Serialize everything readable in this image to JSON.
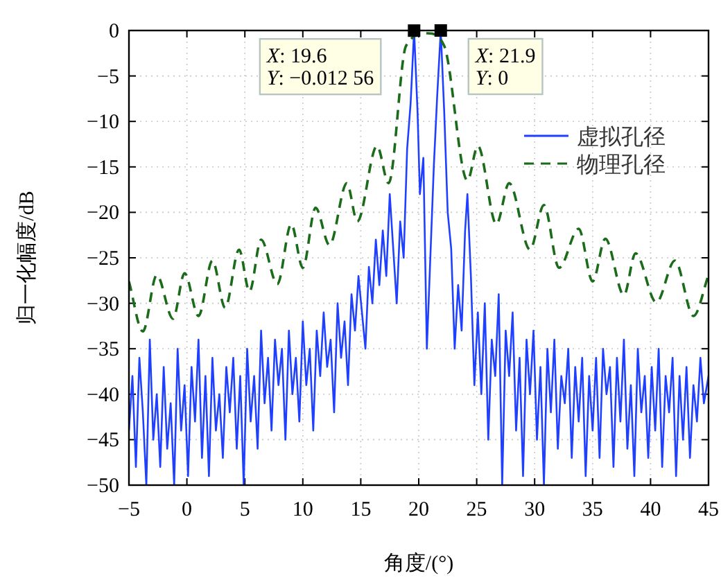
{
  "chart_data": {
    "type": "line",
    "xlabel": "角度/(°)",
    "ylabel": "归一化幅度/dB",
    "xlim": [
      -5,
      45
    ],
    "xticks": [
      -5,
      0,
      5,
      10,
      15,
      20,
      25,
      30,
      35,
      40,
      45
    ],
    "ylim": [
      -50,
      0
    ],
    "yticks": [
      -50,
      -45,
      -40,
      -35,
      -30,
      -25,
      -20,
      -15,
      -10,
      -5,
      0
    ],
    "grid": true,
    "legend": "top right",
    "series": [
      {
        "name": "虚拟孔径",
        "color": "#2040ff",
        "line_style": "solid",
        "x": [
          -5,
          -4.7,
          -4.4,
          -4.1,
          -3.8,
          -3.5,
          -3.2,
          -2.9,
          -2.6,
          -2.3,
          -2.0,
          -1.7,
          -1.4,
          -1.1,
          -0.8,
          -0.5,
          -0.2,
          0.1,
          0.4,
          0.7,
          1.0,
          1.3,
          1.6,
          1.9,
          2.2,
          2.5,
          2.8,
          3.1,
          3.4,
          3.7,
          4.0,
          4.3,
          4.6,
          4.9,
          5.2,
          5.5,
          5.8,
          6.1,
          6.4,
          6.7,
          7.0,
          7.3,
          7.6,
          7.9,
          8.2,
          8.5,
          8.8,
          9.1,
          9.4,
          9.7,
          10.0,
          10.3,
          10.6,
          10.9,
          11.2,
          11.5,
          11.8,
          12.1,
          12.4,
          12.7,
          13.0,
          13.3,
          13.6,
          13.9,
          14.2,
          14.5,
          14.8,
          15.1,
          15.4,
          15.7,
          16.0,
          16.3,
          16.6,
          16.9,
          17.2,
          17.5,
          17.8,
          18.1,
          18.4,
          18.7,
          19.0,
          19.3,
          19.6,
          19.9,
          20.1,
          20.4,
          20.7,
          21.0,
          21.3,
          21.6,
          21.9,
          22.2,
          22.5,
          22.8,
          23.1,
          23.4,
          23.7,
          24.0,
          24.2,
          24.5,
          24.8,
          25.1,
          25.4,
          25.7,
          26.0,
          26.3,
          26.6,
          26.9,
          27.2,
          27.5,
          27.8,
          28.1,
          28.4,
          28.7,
          29.0,
          29.3,
          29.6,
          29.9,
          30.2,
          30.5,
          30.8,
          31.1,
          31.4,
          31.7,
          32.0,
          32.3,
          32.6,
          32.9,
          33.2,
          33.5,
          33.8,
          34.1,
          34.4,
          34.7,
          35.0,
          35.3,
          35.6,
          35.9,
          36.2,
          36.5,
          36.8,
          37.1,
          37.4,
          37.7,
          38.0,
          38.3,
          38.6,
          38.9,
          39.2,
          39.5,
          39.8,
          40.1,
          40.4,
          40.7,
          41.0,
          41.3,
          41.6,
          41.9,
          42.2,
          42.5,
          42.8,
          43.1,
          43.4,
          43.7,
          44.0,
          44.3,
          44.6,
          45.0
        ],
        "values": [
          -44,
          -38,
          -48,
          -36,
          -42,
          -50,
          -34,
          -45,
          -40,
          -48,
          -37,
          -46,
          -41,
          -50,
          -35,
          -44,
          -39,
          -49,
          -37,
          -43,
          -34,
          -47,
          -38,
          -49,
          -36,
          -44,
          -40,
          -47,
          -37,
          -42,
          -36,
          -46,
          -38,
          -50,
          -35,
          -43,
          -38,
          -46,
          -33,
          -41,
          -36,
          -44,
          -34,
          -39,
          -35,
          -45,
          -33,
          -40,
          -36,
          -43,
          -32,
          -39,
          -35,
          -44,
          -33,
          -38,
          -31,
          -37,
          -34,
          -42,
          -30,
          -36,
          -32,
          -39,
          -29,
          -33,
          -27,
          -31,
          -35,
          -26,
          -30,
          -23,
          -28,
          -22,
          -27,
          -18,
          -24,
          -30,
          -21,
          -25,
          -13,
          -8,
          -0.01256,
          -9,
          -18,
          -14,
          -35,
          -25,
          -15,
          -7,
          0,
          -9,
          -20,
          -24,
          -35,
          -28,
          -33,
          -22,
          -18,
          -27,
          -39,
          -31,
          -40,
          -30,
          -45,
          -34,
          -38,
          -29,
          -50,
          -33,
          -38,
          -31,
          -44,
          -36,
          -49,
          -34,
          -40,
          -33,
          -45,
          -37,
          -50,
          -35,
          -42,
          -34,
          -46,
          -38,
          -41,
          -35,
          -47,
          -37,
          -43,
          -36,
          -49,
          -38,
          -44,
          -36,
          -47,
          -35,
          -40,
          -37,
          -48,
          -36,
          -43,
          -34,
          -46,
          -39,
          -49,
          -35,
          -42,
          -38,
          -47,
          -37,
          -44,
          -35,
          -48,
          -38,
          -42,
          -36,
          -49,
          -38,
          -45,
          -37,
          -47,
          -39,
          -43,
          -36,
          -41,
          -38
        ]
      },
      {
        "name": "物理孔径",
        "color": "#1a6b1a",
        "line_style": "dashed",
        "x": [
          -5,
          -3.8,
          -2.6,
          -1.2,
          -0.2,
          1.0,
          2.2,
          3.3,
          4.5,
          5.4,
          6.4,
          7.8,
          9.0,
          10.0,
          11.1,
          12.3,
          13.8,
          14.7,
          16.4,
          17.4,
          18.9,
          20.75,
          22.2,
          24.2,
          25.1,
          26.7,
          27.8,
          29.6,
          30.8,
          32.1,
          33.8,
          35.0,
          36.1,
          37.7,
          38.7,
          40.5,
          42.1,
          43.7,
          45
        ],
        "values": [
          -27.6,
          -33.1,
          -26.9,
          -31.7,
          -26.7,
          -31.4,
          -25.3,
          -30.5,
          -24.1,
          -28.7,
          -23.0,
          -27.9,
          -21.3,
          -26.1,
          -19.5,
          -23.6,
          -16.8,
          -21.0,
          -12.7,
          -16.8,
          -1.7,
          -0.3,
          -1.7,
          -16.5,
          -12.7,
          -21.3,
          -16.8,
          -24.1,
          -19.2,
          -26.1,
          -21.8,
          -27.6,
          -22.9,
          -29.1,
          -24.5,
          -29.9,
          -25.3,
          -31.4,
          -26.9
        ]
      }
    ],
    "annotations": [
      {
        "text": "X: 19.6\nY: −0.012 56",
        "x": 19.6,
        "y": -0.01256
      },
      {
        "text": "X: 21.9\nY: 0",
        "x": 21.9,
        "y": 0
      }
    ]
  }
}
